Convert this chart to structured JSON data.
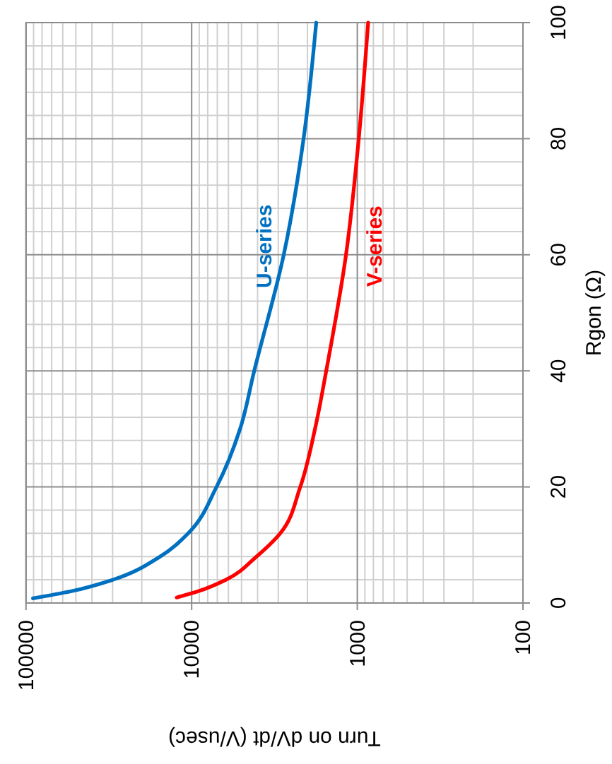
{
  "chart_data": {
    "type": "line",
    "xlabel": "Turn on dV/dt (V/usec)",
    "ylabel": "Rgon (Ω)",
    "log": "x",
    "xlim": [
      100000,
      100
    ],
    "xticks": [
      100000,
      10000,
      1000,
      100
    ],
    "ylim": [
      0,
      100
    ],
    "yticks": [
      0,
      20,
      40,
      60,
      80,
      100
    ],
    "grid": true,
    "marker": "none",
    "line_style": "solid",
    "series": [
      {
        "name": "U-series",
        "color": "#0070c0",
        "x": [
          90800,
          53800,
          29900,
          15500,
          10500,
          7080,
          5100,
          4190,
          2780,
          2110,
          1770
        ],
        "values": [
          0.8,
          2,
          4,
          8,
          12,
          20,
          30,
          40,
          60,
          80,
          100
        ]
      },
      {
        "name": "V-series",
        "color": "#ff0000",
        "x": [
          12300,
          9180,
          6210,
          4060,
          2920,
          2210,
          1800,
          1540,
          1170,
          980,
          860
        ],
        "values": [
          0.95,
          2,
          4,
          8,
          12,
          20,
          30,
          40,
          60,
          80,
          100
        ]
      }
    ]
  }
}
